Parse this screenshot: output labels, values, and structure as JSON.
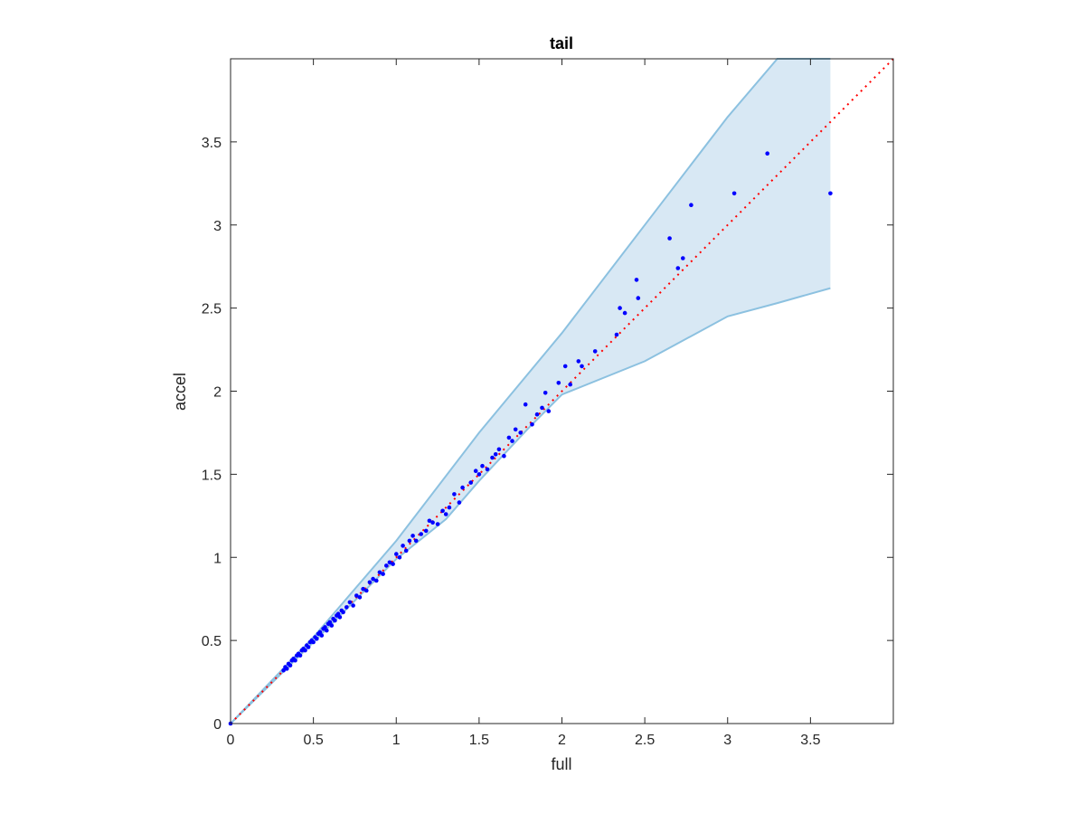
{
  "chart_data": {
    "type": "scatter",
    "title": "tail",
    "xlabel": "full",
    "ylabel": "accel",
    "xlim": [
      0,
      4
    ],
    "ylim": [
      0,
      4
    ],
    "xticks": [
      0,
      0.5,
      1,
      1.5,
      2,
      2.5,
      3,
      3.5
    ],
    "yticks": [
      0,
      0.5,
      1,
      1.5,
      2,
      2.5,
      3,
      3.5
    ],
    "xtick_labels": [
      "0",
      "0.5",
      "1",
      "1.5",
      "2",
      "2.5",
      "3",
      "3.5"
    ],
    "ytick_labels": [
      "0",
      "0.5",
      "1",
      "1.5",
      "2",
      "2.5",
      "3",
      "3.5"
    ],
    "grid": false,
    "colors": {
      "points": "#0000ff",
      "reference_line": "#ff0000",
      "band_fill": "#d8e8f4",
      "band_edge": "#8cc1e0",
      "axes": "#262626"
    },
    "reference_line": {
      "x": [
        0,
        4
      ],
      "y": [
        0,
        4
      ]
    },
    "band_upper": {
      "x": [
        0,
        0.5,
        1.0,
        1.5,
        2.0,
        2.5,
        3.0,
        3.3,
        3.62
      ],
      "y": [
        0,
        0.52,
        1.1,
        1.75,
        2.35,
        3.0,
        3.65,
        4.0,
        4.0
      ]
    },
    "band_lower": {
      "x": [
        0,
        0.5,
        1.0,
        1.3,
        1.5,
        1.8,
        2.0,
        2.5,
        3.0,
        3.3,
        3.62
      ],
      "y": [
        0,
        0.49,
        0.99,
        1.23,
        1.46,
        1.78,
        1.98,
        2.18,
        2.45,
        2.53,
        2.62
      ]
    },
    "points": {
      "x": [
        0,
        0.32,
        0.33,
        0.34,
        0.35,
        0.36,
        0.37,
        0.38,
        0.39,
        0.4,
        0.41,
        0.42,
        0.43,
        0.44,
        0.45,
        0.46,
        0.47,
        0.48,
        0.49,
        0.5,
        0.51,
        0.52,
        0.53,
        0.54,
        0.55,
        0.56,
        0.57,
        0.58,
        0.59,
        0.6,
        0.61,
        0.62,
        0.63,
        0.64,
        0.65,
        0.66,
        0.67,
        0.68,
        0.7,
        0.72,
        0.74,
        0.76,
        0.78,
        0.8,
        0.82,
        0.84,
        0.86,
        0.88,
        0.9,
        0.92,
        0.94,
        0.96,
        0.98,
        1.0,
        1.02,
        1.04,
        1.06,
        1.08,
        1.1,
        1.12,
        1.15,
        1.18,
        1.2,
        1.22,
        1.25,
        1.28,
        1.3,
        1.32,
        1.35,
        1.38,
        1.4,
        1.45,
        1.48,
        1.5,
        1.52,
        1.55,
        1.58,
        1.6,
        1.62,
        1.65,
        1.68,
        1.7,
        1.72,
        1.75,
        1.78,
        1.82,
        1.85,
        1.88,
        1.9,
        1.92,
        1.98,
        2.02,
        2.05,
        2.1,
        2.12,
        2.2,
        2.33,
        2.35,
        2.38,
        2.45,
        2.46,
        2.65,
        2.7,
        2.73,
        2.78,
        3.04,
        3.24,
        3.62
      ],
      "y": [
        0,
        0.32,
        0.34,
        0.33,
        0.36,
        0.35,
        0.38,
        0.39,
        0.38,
        0.41,
        0.42,
        0.41,
        0.44,
        0.45,
        0.44,
        0.47,
        0.46,
        0.49,
        0.5,
        0.49,
        0.52,
        0.51,
        0.54,
        0.55,
        0.53,
        0.57,
        0.58,
        0.56,
        0.6,
        0.61,
        0.59,
        0.63,
        0.62,
        0.65,
        0.66,
        0.64,
        0.68,
        0.67,
        0.7,
        0.73,
        0.71,
        0.77,
        0.76,
        0.81,
        0.8,
        0.85,
        0.87,
        0.86,
        0.91,
        0.9,
        0.95,
        0.97,
        0.96,
        1.02,
        1.0,
        1.07,
        1.04,
        1.1,
        1.13,
        1.1,
        1.14,
        1.16,
        1.22,
        1.21,
        1.2,
        1.28,
        1.26,
        1.3,
        1.38,
        1.33,
        1.42,
        1.45,
        1.52,
        1.5,
        1.55,
        1.53,
        1.6,
        1.62,
        1.65,
        1.61,
        1.72,
        1.7,
        1.77,
        1.75,
        1.92,
        1.8,
        1.86,
        1.9,
        1.99,
        1.88,
        2.05,
        2.15,
        2.04,
        2.18,
        2.15,
        2.24,
        2.34,
        2.5,
        2.47,
        2.67,
        2.56,
        2.92,
        2.74,
        2.8,
        3.12,
        3.19,
        3.43,
        3.19
      ]
    }
  }
}
